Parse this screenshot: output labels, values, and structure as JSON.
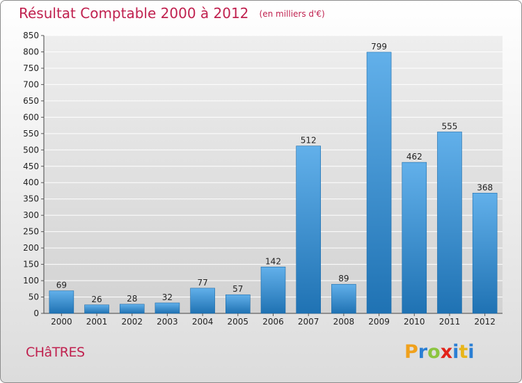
{
  "title": "Résultat Comptable 2000 à 2012",
  "subtitle": "(en milliers d'€)",
  "commune": "CHâTRES",
  "logo": {
    "text": "Proxiti",
    "colors": [
      "#f0a11c",
      "#2a7fd4",
      "#8bc53f",
      "#e2231a",
      "#2a7fd4",
      "#e8b51a",
      "#2a7fd4"
    ]
  },
  "colors": {
    "title": "#c0214f",
    "bar_top": "#62b0ea",
    "bar_bottom": "#1f72b3",
    "grid": "#ffffff"
  },
  "chart_data": {
    "type": "bar",
    "categories": [
      "2000",
      "2001",
      "2002",
      "2003",
      "2004",
      "2005",
      "2006",
      "2007",
      "2008",
      "2009",
      "2010",
      "2011",
      "2012"
    ],
    "values": [
      69,
      26,
      28,
      32,
      77,
      57,
      142,
      512,
      89,
      799,
      462,
      555,
      368
    ],
    "title": "Résultat Comptable 2000 à 2012",
    "ylim": [
      0,
      850
    ],
    "yticks": [
      0,
      50,
      100,
      150,
      200,
      250,
      300,
      350,
      400,
      450,
      500,
      550,
      600,
      650,
      700,
      750,
      800,
      850
    ],
    "grid": true,
    "data_labels": true
  }
}
